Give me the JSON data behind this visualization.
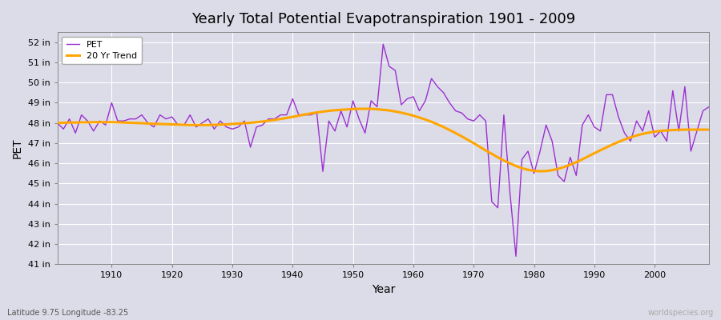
{
  "title": "Yearly Total Potential Evapotranspiration 1901 - 2009",
  "xlabel": "Year",
  "ylabel": "PET",
  "subtitle": "Latitude 9.75 Longitude -83.25",
  "watermark": "worldspecies.org",
  "ylim": [
    41,
    52.5
  ],
  "ytick_labels": [
    "41 in",
    "42 in",
    "43 in",
    "44 in",
    "45 in",
    "46 in",
    "47 in",
    "48 in",
    "49 in",
    "50 in",
    "51 in",
    "52 in"
  ],
  "ytick_values": [
    41,
    42,
    43,
    44,
    45,
    46,
    47,
    48,
    49,
    50,
    51,
    52
  ],
  "pet_color": "#9b30d0",
  "trend_color": "#FFA500",
  "bg_color": "#dcdce8",
  "grid_color": "#ffffff",
  "years": [
    1901,
    1902,
    1903,
    1904,
    1905,
    1906,
    1907,
    1908,
    1909,
    1910,
    1911,
    1912,
    1913,
    1914,
    1915,
    1916,
    1917,
    1918,
    1919,
    1920,
    1921,
    1922,
    1923,
    1924,
    1925,
    1926,
    1927,
    1928,
    1929,
    1930,
    1931,
    1932,
    1933,
    1934,
    1935,
    1936,
    1937,
    1938,
    1939,
    1940,
    1941,
    1942,
    1943,
    1944,
    1945,
    1946,
    1947,
    1948,
    1949,
    1950,
    1951,
    1952,
    1953,
    1954,
    1955,
    1956,
    1957,
    1958,
    1959,
    1960,
    1961,
    1962,
    1963,
    1964,
    1965,
    1966,
    1967,
    1968,
    1969,
    1970,
    1971,
    1972,
    1973,
    1974,
    1975,
    1976,
    1977,
    1978,
    1979,
    1980,
    1981,
    1982,
    1983,
    1984,
    1985,
    1986,
    1987,
    1988,
    1989,
    1990,
    1991,
    1992,
    1993,
    1994,
    1995,
    1996,
    1997,
    1998,
    1999,
    2000,
    2001,
    2002,
    2003,
    2004,
    2005,
    2006,
    2007,
    2008,
    2009
  ],
  "pet_values": [
    48.0,
    47.7,
    48.2,
    47.5,
    48.4,
    48.1,
    47.6,
    48.1,
    47.9,
    49.0,
    48.1,
    48.1,
    48.2,
    48.2,
    48.4,
    48.0,
    47.8,
    48.4,
    48.2,
    48.3,
    47.9,
    47.9,
    48.4,
    47.8,
    48.0,
    48.2,
    47.7,
    48.1,
    47.8,
    47.7,
    47.8,
    48.1,
    46.8,
    47.8,
    47.9,
    48.2,
    48.2,
    48.4,
    48.4,
    49.2,
    48.4,
    48.4,
    48.4,
    48.5,
    45.6,
    48.1,
    47.6,
    48.6,
    47.8,
    49.1,
    48.2,
    47.5,
    49.1,
    48.8,
    51.9,
    50.8,
    50.6,
    48.9,
    49.2,
    49.3,
    48.6,
    49.1,
    50.2,
    49.8,
    49.5,
    49.0,
    48.6,
    48.5,
    48.2,
    48.1,
    48.4,
    48.1,
    44.1,
    43.8,
    48.4,
    44.6,
    41.4,
    46.2,
    46.6,
    45.5,
    46.6,
    47.9,
    47.1,
    45.4,
    45.1,
    46.3,
    45.4,
    47.9,
    48.4,
    47.8,
    47.6,
    49.4,
    49.4,
    48.3,
    47.5,
    47.1,
    48.1,
    47.6,
    48.6,
    47.3,
    47.6,
    47.1,
    49.6,
    47.6,
    49.8,
    46.6,
    47.6,
    48.6,
    48.8
  ],
  "trend_years": [
    1901,
    1902,
    1903,
    1904,
    1905,
    1906,
    1907,
    1908,
    1909,
    1910,
    1911,
    1912,
    1913,
    1914,
    1915,
    1916,
    1917,
    1918,
    1919,
    1920,
    1921,
    1922,
    1923,
    1924,
    1925,
    1926,
    1927,
    1928,
    1929,
    1930,
    1931,
    1932,
    1933,
    1934,
    1935,
    1936,
    1937,
    1938,
    1939,
    1940,
    1941,
    1942,
    1943,
    1944,
    1945,
    1946,
    1947,
    1948,
    1949,
    1950,
    1951,
    1952,
    1953,
    1954,
    1955,
    1956,
    1957,
    1958,
    1959,
    1960,
    1961,
    1962,
    1963,
    1964,
    1965,
    1966,
    1967,
    1968,
    1969,
    1970,
    1971,
    1972,
    1973,
    1974,
    1975,
    1976,
    1977,
    1978,
    1979,
    1980,
    1981,
    1982,
    1983,
    1984,
    1985,
    1986,
    1987,
    1988,
    1989,
    1990,
    1991,
    1992,
    1993,
    1994,
    1995,
    1996,
    1997,
    1998,
    1999,
    2000,
    2001,
    2002,
    2003,
    2004,
    2005,
    2006,
    2007,
    2008,
    2009
  ],
  "trend_values": [
    48.0,
    48.01,
    48.02,
    48.02,
    48.03,
    48.03,
    48.04,
    48.04,
    48.04,
    48.04,
    48.03,
    48.02,
    48.01,
    48.0,
    47.99,
    47.97,
    47.96,
    47.95,
    47.94,
    47.93,
    47.92,
    47.91,
    47.9,
    47.9,
    47.9,
    47.9,
    47.91,
    47.92,
    47.93,
    47.95,
    47.97,
    47.99,
    48.01,
    48.04,
    48.07,
    48.11,
    48.15,
    48.2,
    48.25,
    48.3,
    48.36,
    48.42,
    48.47,
    48.52,
    48.56,
    48.6,
    48.63,
    48.65,
    48.67,
    48.69,
    48.7,
    48.7,
    48.7,
    48.68,
    48.65,
    48.62,
    48.57,
    48.51,
    48.44,
    48.36,
    48.27,
    48.17,
    48.06,
    47.93,
    47.8,
    47.65,
    47.5,
    47.34,
    47.17,
    47.0,
    46.82,
    46.64,
    46.47,
    46.3,
    46.14,
    46.0,
    45.87,
    45.76,
    45.68,
    45.63,
    45.61,
    45.62,
    45.66,
    45.73,
    45.82,
    45.93,
    46.06,
    46.2,
    46.35,
    46.5,
    46.65,
    46.79,
    46.93,
    47.06,
    47.18,
    47.29,
    47.38,
    47.46,
    47.52,
    47.57,
    47.61,
    47.63,
    47.65,
    47.66,
    47.67,
    47.67,
    47.67,
    47.67,
    47.67
  ]
}
